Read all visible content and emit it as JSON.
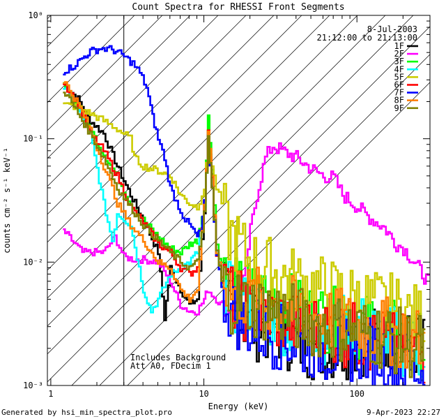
{
  "chart_data": {
    "type": "line",
    "title": "Count Spectra for RHESSI Front Segments",
    "xlabel": "Energy (keV)",
    "ylabel": "counts cm⁻² s⁻¹ keV⁻¹",
    "xscale": "log",
    "yscale": "log",
    "xlim": [
      0.95,
      300
    ],
    "ylim": [
      0.001,
      1.0
    ],
    "x_ticks": [
      {
        "value": 1,
        "label": "1"
      },
      {
        "value": 10,
        "label": "10"
      },
      {
        "value": 100,
        "label": "100"
      }
    ],
    "y_ticks": [
      {
        "value": 0.001,
        "label": "10⁻³"
      },
      {
        "value": 0.01,
        "label": "10⁻²"
      },
      {
        "value": 0.1,
        "label": "10⁻¹"
      },
      {
        "value": 1,
        "label": "10⁰"
      }
    ],
    "hatched_region": {
      "xmin": 1.0,
      "xmax": 3.0
    },
    "legend_header": [
      "8-Jul-2003",
      "21:12:00 to 21:13:00"
    ],
    "annotations": [
      "Includes Background",
      "Att A0, FDecim 1"
    ],
    "series": [
      {
        "name": "1F",
        "color": "#000000",
        "points": [
          [
            1.2,
            0.28
          ],
          [
            1.5,
            0.21
          ],
          [
            1.8,
            0.14
          ],
          [
            2.2,
            0.11
          ],
          [
            2.7,
            0.06
          ],
          [
            3.3,
            0.035
          ],
          [
            4,
            0.022
          ],
          [
            5,
            0.012
          ],
          [
            5.5,
            0.0035
          ],
          [
            6,
            0.009
          ],
          [
            7,
            0.006
          ],
          [
            8,
            0.0045
          ],
          [
            9,
            0.005
          ],
          [
            10,
            0.025
          ],
          [
            10.6,
            0.12
          ],
          [
            11.2,
            0.05
          ],
          [
            12,
            0.012
          ],
          [
            13,
            0.006
          ],
          [
            15,
            0.004
          ],
          [
            20,
            0.003
          ],
          [
            30,
            0.0028
          ],
          [
            40,
            0.0022
          ],
          [
            60,
            0.002
          ],
          [
            100,
            0.0022
          ],
          [
            150,
            0.0025
          ],
          [
            200,
            0.0022
          ],
          [
            280,
            0.002
          ]
        ]
      },
      {
        "name": "2F",
        "color": "#ff00ff",
        "points": [
          [
            1.2,
            0.018
          ],
          [
            1.6,
            0.012
          ],
          [
            2.2,
            0.012
          ],
          [
            2.6,
            0.016
          ],
          [
            3,
            0.011
          ],
          [
            3.5,
            0.0105
          ],
          [
            4,
            0.0105
          ],
          [
            5,
            0.01
          ],
          [
            6,
            0.007
          ],
          [
            7,
            0.0045
          ],
          [
            8,
            0.004
          ],
          [
            9,
            0.004
          ],
          [
            10,
            0.005
          ],
          [
            10.5,
            0.006
          ],
          [
            12,
            0.005
          ],
          [
            14,
            0.004
          ],
          [
            16,
            0.0045
          ],
          [
            18,
            0.007
          ],
          [
            20,
            0.018
          ],
          [
            22,
            0.035
          ],
          [
            25,
            0.07
          ],
          [
            28,
            0.088
          ],
          [
            32,
            0.08
          ],
          [
            40,
            0.07
          ],
          [
            50,
            0.057
          ],
          [
            60,
            0.05
          ],
          [
            70,
            0.048
          ],
          [
            80,
            0.035
          ],
          [
            100,
            0.028
          ],
          [
            120,
            0.023
          ],
          [
            150,
            0.019
          ],
          [
            180,
            0.014
          ],
          [
            200,
            0.013
          ],
          [
            250,
            0.009
          ],
          [
            300,
            0.0065
          ]
        ]
      },
      {
        "name": "3F",
        "color": "#00ff00",
        "points": [
          [
            1.2,
            0.27
          ],
          [
            1.5,
            0.18
          ],
          [
            1.8,
            0.12
          ],
          [
            2.2,
            0.075
          ],
          [
            2.7,
            0.05
          ],
          [
            3.3,
            0.03
          ],
          [
            4,
            0.022
          ],
          [
            5,
            0.016
          ],
          [
            6,
            0.013
          ],
          [
            7,
            0.012
          ],
          [
            8,
            0.014
          ],
          [
            9,
            0.015
          ],
          [
            10,
            0.03
          ],
          [
            10.6,
            0.15
          ],
          [
            11.2,
            0.06
          ],
          [
            12,
            0.014
          ],
          [
            13,
            0.008
          ],
          [
            15,
            0.006
          ],
          [
            20,
            0.0055
          ],
          [
            30,
            0.005
          ],
          [
            40,
            0.004
          ],
          [
            60,
            0.0035
          ],
          [
            100,
            0.003
          ],
          [
            150,
            0.0028
          ],
          [
            200,
            0.0025
          ],
          [
            280,
            0.002
          ]
        ]
      },
      {
        "name": "4F",
        "color": "#00ffff",
        "points": [
          [
            1.2,
            0.26
          ],
          [
            1.5,
            0.17
          ],
          [
            1.8,
            0.11
          ],
          [
            2.2,
            0.03
          ],
          [
            2.5,
            0.015
          ],
          [
            2.7,
            0.025
          ],
          [
            3.3,
            0.02
          ],
          [
            4,
            0.006
          ],
          [
            4.5,
            0.004
          ],
          [
            5,
            0.005
          ],
          [
            6,
            0.008
          ],
          [
            7,
            0.009
          ],
          [
            8,
            0.01
          ],
          [
            9,
            0.012
          ],
          [
            10,
            0.025
          ],
          [
            10.6,
            0.1
          ],
          [
            11.2,
            0.04
          ],
          [
            12,
            0.012
          ],
          [
            13,
            0.007
          ],
          [
            15,
            0.005
          ],
          [
            20,
            0.004
          ],
          [
            30,
            0.0035
          ],
          [
            40,
            0.003
          ],
          [
            60,
            0.0028
          ],
          [
            100,
            0.003
          ],
          [
            150,
            0.0025
          ],
          [
            200,
            0.0022
          ],
          [
            280,
            0.0018
          ]
        ]
      },
      {
        "name": "5F",
        "color": "#cccc00",
        "points": [
          [
            1.2,
            0.19
          ],
          [
            1.5,
            0.18
          ],
          [
            1.8,
            0.16
          ],
          [
            2.2,
            0.14
          ],
          [
            2.7,
            0.12
          ],
          [
            3.3,
            0.1
          ],
          [
            3.5,
            0.07
          ],
          [
            4,
            0.06
          ],
          [
            5,
            0.055
          ],
          [
            6,
            0.05
          ],
          [
            7,
            0.035
          ],
          [
            8,
            0.03
          ],
          [
            9,
            0.028
          ],
          [
            10,
            0.04
          ],
          [
            10.6,
            0.09
          ],
          [
            11.2,
            0.06
          ],
          [
            12,
            0.04
          ],
          [
            13,
            0.03
          ],
          [
            14,
            0.018
          ],
          [
            16,
            0.015
          ],
          [
            18,
            0.012
          ],
          [
            20,
            0.01
          ],
          [
            25,
            0.009
          ],
          [
            30,
            0.008
          ],
          [
            40,
            0.007
          ],
          [
            60,
            0.006
          ],
          [
            80,
            0.0055
          ],
          [
            100,
            0.005
          ],
          [
            150,
            0.0045
          ],
          [
            200,
            0.004
          ],
          [
            280,
            0.0032
          ]
        ]
      },
      {
        "name": "6F",
        "color": "#ff0000",
        "points": [
          [
            1.2,
            0.29
          ],
          [
            1.5,
            0.19
          ],
          [
            1.8,
            0.11
          ],
          [
            2.2,
            0.08
          ],
          [
            2.7,
            0.05
          ],
          [
            3.3,
            0.028
          ],
          [
            4,
            0.021
          ],
          [
            5,
            0.014
          ],
          [
            6,
            0.012
          ],
          [
            7,
            0.009
          ],
          [
            8,
            0.008
          ],
          [
            9,
            0.009
          ],
          [
            10,
            0.03
          ],
          [
            10.6,
            0.11
          ],
          [
            11.2,
            0.05
          ],
          [
            12,
            0.012
          ],
          [
            13,
            0.007
          ],
          [
            15,
            0.005
          ],
          [
            20,
            0.004
          ],
          [
            30,
            0.0035
          ],
          [
            40,
            0.003
          ],
          [
            60,
            0.0028
          ],
          [
            100,
            0.0025
          ],
          [
            150,
            0.0022
          ],
          [
            200,
            0.002
          ],
          [
            280,
            0.0018
          ]
        ]
      },
      {
        "name": "7F",
        "color": "#0000ff",
        "points": [
          [
            1.2,
            0.35
          ],
          [
            1.4,
            0.39
          ],
          [
            1.6,
            0.45
          ],
          [
            1.8,
            0.51
          ],
          [
            2.1,
            0.54
          ],
          [
            2.5,
            0.53
          ],
          [
            2.9,
            0.48
          ],
          [
            3.1,
            0.45
          ],
          [
            3.4,
            0.41
          ],
          [
            3.8,
            0.34
          ],
          [
            4.2,
            0.26
          ],
          [
            4.6,
            0.15
          ],
          [
            5,
            0.1
          ],
          [
            5.5,
            0.07
          ],
          [
            6,
            0.04
          ],
          [
            7,
            0.026
          ],
          [
            7.5,
            0.022
          ],
          [
            8,
            0.02
          ],
          [
            8.5,
            0.018
          ],
          [
            9,
            0.016
          ],
          [
            9.5,
            0.018
          ],
          [
            10,
            0.03
          ],
          [
            10.6,
            0.1
          ],
          [
            11.2,
            0.04
          ],
          [
            12,
            0.012
          ],
          [
            13,
            0.006
          ],
          [
            15,
            0.004
          ],
          [
            20,
            0.003
          ],
          [
            30,
            0.0025
          ],
          [
            40,
            0.0022
          ],
          [
            60,
            0.002
          ],
          [
            100,
            0.002
          ],
          [
            150,
            0.0018
          ],
          [
            200,
            0.0015
          ],
          [
            280,
            0.0013
          ]
        ]
      },
      {
        "name": "8F",
        "color": "#ff8000",
        "points": [
          [
            1.2,
            0.3
          ],
          [
            1.5,
            0.19
          ],
          [
            1.8,
            0.12
          ],
          [
            2.2,
            0.06
          ],
          [
            2.5,
            0.04
          ],
          [
            2.7,
            0.03
          ],
          [
            3.3,
            0.02
          ],
          [
            4,
            0.015
          ],
          [
            5,
            0.01
          ],
          [
            6,
            0.009
          ],
          [
            7,
            0.006
          ],
          [
            8,
            0.005
          ],
          [
            9,
            0.006
          ],
          [
            10,
            0.028
          ],
          [
            10.6,
            0.12
          ],
          [
            11.2,
            0.05
          ],
          [
            12,
            0.012
          ],
          [
            13,
            0.008
          ],
          [
            15,
            0.006
          ],
          [
            20,
            0.005
          ],
          [
            30,
            0.0045
          ],
          [
            40,
            0.004
          ],
          [
            60,
            0.0035
          ],
          [
            100,
            0.003
          ],
          [
            150,
            0.0028
          ],
          [
            200,
            0.0025
          ],
          [
            280,
            0.0022
          ]
        ]
      },
      {
        "name": "9F",
        "color": "#808000",
        "points": [
          [
            1.2,
            0.25
          ],
          [
            1.5,
            0.16
          ],
          [
            1.8,
            0.11
          ],
          [
            2.2,
            0.07
          ],
          [
            2.7,
            0.04
          ],
          [
            3.3,
            0.028
          ],
          [
            4,
            0.02
          ],
          [
            5,
            0.015
          ],
          [
            6,
            0.012
          ],
          [
            7,
            0.01
          ],
          [
            8,
            0.009
          ],
          [
            9,
            0.01
          ],
          [
            10,
            0.025
          ],
          [
            10.6,
            0.1
          ],
          [
            11.2,
            0.04
          ],
          [
            12,
            0.012
          ],
          [
            13,
            0.007
          ],
          [
            15,
            0.005
          ],
          [
            20,
            0.0045
          ],
          [
            30,
            0.004
          ],
          [
            40,
            0.0035
          ],
          [
            60,
            0.003
          ],
          [
            100,
            0.0028
          ],
          [
            150,
            0.0025
          ],
          [
            200,
            0.0022
          ],
          [
            280,
            0.002
          ]
        ]
      }
    ]
  },
  "footer": {
    "generated_by": "Generated by hsi_min_spectra_plot.pro",
    "date": "9-Apr-2023 22:27"
  }
}
